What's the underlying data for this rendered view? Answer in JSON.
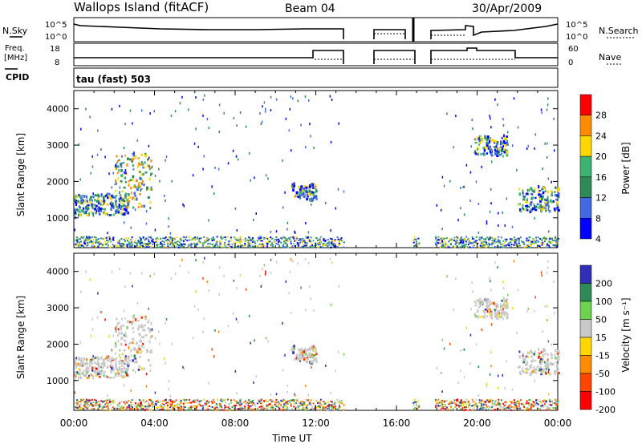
{
  "header": {
    "station": "Wallops Island (fitACF)",
    "beam": "Beam 04",
    "date": "30/Apr/2009"
  },
  "top_panels": {
    "nsky_label": "N.Sky",
    "nsky_ticks": [
      "10^5",
      "10^0"
    ],
    "nsearch_label": "N.Search",
    "nsearch_ticks": [
      "10^5",
      "10^0"
    ],
    "freq_label_1": "Freq.",
    "freq_label_2": "[MHz]",
    "freq_ticks": [
      "18",
      "8"
    ],
    "nave_label": "Nave",
    "nave_ticks": [
      "60",
      "0"
    ],
    "cpid_label": "CPID",
    "cpid_value": "tau (fast) 503"
  },
  "colorbars": {
    "power": {
      "label": "Power [dB]",
      "ticks": [
        "28",
        "24",
        "20",
        "16",
        "12",
        "8",
        "4"
      ],
      "colors": [
        "#ff0000",
        "#ff8c00",
        "#ffd700",
        "#3cb371",
        "#2e8b57",
        "#4169e1",
        "#0000ff"
      ]
    },
    "velocity": {
      "label": "Velocity [m s⁻¹]",
      "ticks": [
        "200",
        "100",
        "50",
        "15",
        "-15",
        "-50",
        "-100",
        "-200"
      ],
      "colors": [
        "#2e2eb8",
        "#2e8b57",
        "#6dd34f",
        "#c8c8c8",
        "#ffd700",
        "#ff8c00",
        "#ff4500",
        "#ff0000"
      ]
    }
  },
  "chart_data": [
    {
      "type": "heatmap",
      "title": "Power",
      "ylabel": "Slant Range [km]",
      "xlabel": "Time UT",
      "xlim": [
        "00:00",
        "24:00"
      ],
      "ylim": [
        180,
        4500
      ],
      "y_ticks": [
        "4000",
        "3000",
        "2000",
        "1000"
      ],
      "x_ticks": [
        "00:00",
        "04:00",
        "08:00",
        "12:00",
        "16:00",
        "20:00",
        "00:00"
      ],
      "features": [
        {
          "name": "main echo band",
          "time_start": "00:00",
          "time_end": "02:45",
          "range_km": [
            1100,
            1700
          ]
        },
        {
          "name": "rising echo",
          "time_start": "02:00",
          "time_end": "03:50",
          "range_km": [
            1300,
            2800
          ]
        },
        {
          "name": "afternoon patch",
          "time_start": "10:45",
          "time_end": "12:00",
          "range_km": [
            1500,
            2000
          ]
        },
        {
          "name": "evening patch",
          "time_start": "19:50",
          "time_end": "21:30",
          "range_km": [
            2700,
            3300
          ]
        },
        {
          "name": "late band",
          "time_start": "22:00",
          "time_end": "24:00",
          "range_km": [
            1200,
            1900
          ]
        }
      ]
    },
    {
      "type": "heatmap",
      "title": "Velocity",
      "ylabel": "Slant Range [km]",
      "xlabel": "Time UT",
      "xlim": [
        "00:00",
        "24:00"
      ],
      "ylim": [
        180,
        4500
      ],
      "y_ticks": [
        "4000",
        "3000",
        "2000",
        "1000"
      ],
      "x_ticks": [
        "00:00",
        "04:00",
        "08:00",
        "12:00",
        "16:00",
        "20:00",
        "00:00"
      ]
    }
  ],
  "axis_title": "Time UT"
}
